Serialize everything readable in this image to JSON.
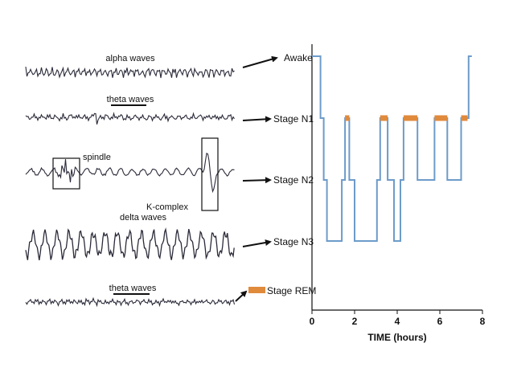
{
  "colors": {
    "hypnogram_line": "#6d9bc9",
    "rem_segment": "#e08a3c",
    "wave": "#2b2b3a",
    "arrow": "#111111",
    "axis": "#111111"
  },
  "waves": [
    {
      "caption": "alpha waves",
      "kind": "alpha"
    },
    {
      "caption": "theta waves",
      "kind": "theta"
    },
    {
      "caption": "",
      "kind": "n2",
      "annotations": [
        "spindle",
        "K-complex"
      ]
    },
    {
      "caption": "delta waves",
      "kind": "delta"
    },
    {
      "caption": "theta waves",
      "kind": "theta-rem"
    }
  ],
  "chart_data": {
    "type": "line",
    "title": "",
    "xlabel": "TIME (hours)",
    "ylabel": "",
    "xlim": [
      0,
      8
    ],
    "x_ticks": [
      0,
      2,
      4,
      6,
      8
    ],
    "stages": [
      "Awake",
      "Stage N1",
      "Stage N2",
      "Stage N3",
      "Stage REM"
    ],
    "series": [
      {
        "points": [
          [
            0,
            "Awake"
          ],
          [
            0.4,
            "Awake"
          ],
          [
            0.4,
            "Stage N1"
          ],
          [
            0.55,
            "Stage N1"
          ],
          [
            0.55,
            "Stage N2"
          ],
          [
            0.7,
            "Stage N2"
          ],
          [
            0.7,
            "Stage N3"
          ],
          [
            1.4,
            "Stage N3"
          ],
          [
            1.4,
            "Stage N2"
          ],
          [
            1.55,
            "Stage N2"
          ],
          [
            1.55,
            "Stage N1"
          ],
          [
            1.75,
            "Stage N1"
          ],
          [
            1.75,
            "Stage N2"
          ],
          [
            2.0,
            "Stage N2"
          ],
          [
            2.0,
            "Stage N3"
          ],
          [
            3.05,
            "Stage N3"
          ],
          [
            3.05,
            "Stage N2"
          ],
          [
            3.2,
            "Stage N2"
          ],
          [
            3.2,
            "Stage N1"
          ],
          [
            3.55,
            "Stage N1"
          ],
          [
            3.55,
            "Stage N2"
          ],
          [
            3.85,
            "Stage N2"
          ],
          [
            3.85,
            "Stage N3"
          ],
          [
            4.15,
            "Stage N3"
          ],
          [
            4.15,
            "Stage N2"
          ],
          [
            4.3,
            "Stage N2"
          ],
          [
            4.3,
            "Stage N1"
          ],
          [
            4.95,
            "Stage N1"
          ],
          [
            4.95,
            "Stage N2"
          ],
          [
            5.75,
            "Stage N2"
          ],
          [
            5.75,
            "Stage N1"
          ],
          [
            6.35,
            "Stage N1"
          ],
          [
            6.35,
            "Stage N2"
          ],
          [
            7.0,
            "Stage N2"
          ],
          [
            7.0,
            "Stage N1"
          ],
          [
            7.35,
            "Stage N1"
          ],
          [
            7.35,
            "Awake"
          ],
          [
            7.5,
            "Awake"
          ]
        ]
      }
    ],
    "rem_periods": [
      [
        1.55,
        1.75
      ],
      [
        3.2,
        3.55
      ],
      [
        4.3,
        4.95
      ],
      [
        5.75,
        6.35
      ],
      [
        7.0,
        7.3
      ]
    ],
    "legend": {
      "label": "Stage REM",
      "color": "#e08a3c"
    }
  }
}
